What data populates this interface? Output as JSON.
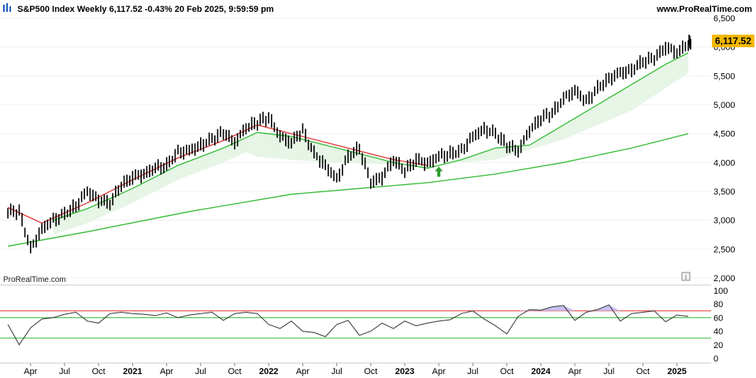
{
  "header": {
    "title": "S&P500 Index Weekly 6,117.52 -0.43% 20 Feb 2025, 9:59:59 pm",
    "source": "www.ProRealTime.com"
  },
  "watermark": "ProRealTime.com",
  "info_icon": "info-icon",
  "chart_data": [
    {
      "type": "line",
      "title": "S&P500 Index Weekly",
      "last_value_label": "6,117.52",
      "ylim": [
        2000,
        6500
      ],
      "y_ticks": [
        "6,500",
        "6,000",
        "5,500",
        "5,000",
        "4,500",
        "4,000",
        "3,500",
        "3,000",
        "2,500",
        "2,000"
      ],
      "x_ticks": [
        "Apr",
        "Jul",
        "Oct",
        "2021",
        "Apr",
        "Jul",
        "Oct",
        "2022",
        "Apr",
        "Jul",
        "Oct",
        "2023",
        "Apr",
        "Jul",
        "Oct",
        "2024",
        "Apr",
        "Jul",
        "Oct",
        "2025"
      ],
      "x_ticks_bold": [
        "2021",
        "2022",
        "2023",
        "2024",
        "2025"
      ],
      "x_range": [
        "2020-02",
        "2025-02"
      ],
      "close": [
        {
          "x": "2020-02",
          "y": 3150
        },
        {
          "x": "2020-03",
          "y": 2500
        },
        {
          "x": "2020-04",
          "y": 2850
        },
        {
          "x": "2020-05",
          "y": 3000
        },
        {
          "x": "2020-06",
          "y": 3100
        },
        {
          "x": "2020-07",
          "y": 3250
        },
        {
          "x": "2020-08",
          "y": 3500
        },
        {
          "x": "2020-09",
          "y": 3350
        },
        {
          "x": "2020-10",
          "y": 3300
        },
        {
          "x": "2020-11",
          "y": 3600
        },
        {
          "x": "2020-12",
          "y": 3750
        },
        {
          "x": "2021-01",
          "y": 3800
        },
        {
          "x": "2021-02",
          "y": 3900
        },
        {
          "x": "2021-03",
          "y": 3950
        },
        {
          "x": "2021-04",
          "y": 4180
        },
        {
          "x": "2021-05",
          "y": 4200
        },
        {
          "x": "2021-06",
          "y": 4300
        },
        {
          "x": "2021-07",
          "y": 4400
        },
        {
          "x": "2021-08",
          "y": 4520
        },
        {
          "x": "2021-09",
          "y": 4350
        },
        {
          "x": "2021-10",
          "y": 4600
        },
        {
          "x": "2021-11",
          "y": 4700
        },
        {
          "x": "2021-12",
          "y": 4780
        },
        {
          "x": "2022-01",
          "y": 4450
        },
        {
          "x": "2022-02",
          "y": 4350
        },
        {
          "x": "2022-03",
          "y": 4550
        },
        {
          "x": "2022-04",
          "y": 4150
        },
        {
          "x": "2022-05",
          "y": 3950
        },
        {
          "x": "2022-06",
          "y": 3700
        },
        {
          "x": "2022-07",
          "y": 4100
        },
        {
          "x": "2022-08",
          "y": 4250
        },
        {
          "x": "2022-09",
          "y": 3650
        },
        {
          "x": "2022-10",
          "y": 3750
        },
        {
          "x": "2022-11",
          "y": 4050
        },
        {
          "x": "2022-12",
          "y": 3850
        },
        {
          "x": "2023-01",
          "y": 4050
        },
        {
          "x": "2023-02",
          "y": 3980
        },
        {
          "x": "2023-03",
          "y": 4100
        },
        {
          "x": "2023-04",
          "y": 4150
        },
        {
          "x": "2023-05",
          "y": 4200
        },
        {
          "x": "2023-06",
          "y": 4450
        },
        {
          "x": "2023-07",
          "y": 4580
        },
        {
          "x": "2023-08",
          "y": 4500
        },
        {
          "x": "2023-09",
          "y": 4300
        },
        {
          "x": "2023-10",
          "y": 4200
        },
        {
          "x": "2023-11",
          "y": 4550
        },
        {
          "x": "2023-12",
          "y": 4770
        },
        {
          "x": "2024-01",
          "y": 4850
        },
        {
          "x": "2024-02",
          "y": 5100
        },
        {
          "x": "2024-03",
          "y": 5250
        },
        {
          "x": "2024-04",
          "y": 5050
        },
        {
          "x": "2024-05",
          "y": 5280
        },
        {
          "x": "2024-06",
          "y": 5450
        },
        {
          "x": "2024-07",
          "y": 5550
        },
        {
          "x": "2024-08",
          "y": 5600
        },
        {
          "x": "2024-09",
          "y": 5750
        },
        {
          "x": "2024-10",
          "y": 5800
        },
        {
          "x": "2024-11",
          "y": 6000
        },
        {
          "x": "2024-12",
          "y": 5900
        },
        {
          "x": "2025-01",
          "y": 6050
        },
        {
          "x": "2025-02",
          "y": 6117.52
        }
      ],
      "series": [
        {
          "name": "",
          "color": "#dd3333",
          "values": [
            {
              "x": "2020-02",
              "y": 3220
            },
            {
              "x": "2020-05",
              "y": 2950
            },
            {
              "x": "2020-09",
              "y": 3300
            },
            {
              "x": "2021-01",
              "y": 3700
            },
            {
              "x": "2021-05",
              "y": 4080
            },
            {
              "x": "2021-09",
              "y": 4380
            },
            {
              "x": "2021-12",
              "y": 4650
            },
            {
              "x": "2022-03",
              "y": 4500
            },
            {
              "x": "2022-06",
              "y": 4350
            },
            {
              "x": "2022-09",
              "y": 4200
            },
            {
              "x": "2022-12",
              "y": 4050
            },
            {
              "x": "2023-03",
              "y": 3950
            }
          ]
        },
        {
          "name": "",
          "color": "#33bb33",
          "values": [
            {
              "x": "2020-06",
              "y": 3000
            },
            {
              "x": "2020-09",
              "y": 3200
            },
            {
              "x": "2021-01",
              "y": 3550
            },
            {
              "x": "2021-05",
              "y": 3950
            },
            {
              "x": "2021-09",
              "y": 4250
            },
            {
              "x": "2021-12",
              "y": 4520
            },
            {
              "x": "2022-03",
              "y": 4450
            },
            {
              "x": "2022-06",
              "y": 4300
            },
            {
              "x": "2022-09",
              "y": 4150
            },
            {
              "x": "2022-12",
              "y": 4000
            },
            {
              "x": "2023-03",
              "y": 3900
            },
            {
              "x": "2023-06",
              "y": 4050
            },
            {
              "x": "2023-09",
              "y": 4250
            },
            {
              "x": "2023-12",
              "y": 4300
            },
            {
              "x": "2024-03",
              "y": 4650
            },
            {
              "x": "2024-06",
              "y": 5000
            },
            {
              "x": "2024-09",
              "y": 5350
            },
            {
              "x": "2024-12",
              "y": 5700
            },
            {
              "x": "2025-02",
              "y": 5900
            }
          ]
        },
        {
          "name": "",
          "color": "#33bb33",
          "values": [
            {
              "x": "2020-02",
              "y": 2550
            },
            {
              "x": "2020-09",
              "y": 2800
            },
            {
              "x": "2021-06",
              "y": 3150
            },
            {
              "x": "2022-03",
              "y": 3450
            },
            {
              "x": "2022-09",
              "y": 3550
            },
            {
              "x": "2023-03",
              "y": 3650
            },
            {
              "x": "2023-09",
              "y": 3800
            },
            {
              "x": "2024-03",
              "y": 4000
            },
            {
              "x": "2024-09",
              "y": 4250
            },
            {
              "x": "2025-02",
              "y": 4500
            }
          ]
        },
        {
          "name": "",
          "color": "#33bb33",
          "values": [
            {
              "x": "2021-12",
              "y": 4100
            },
            {
              "x": "2022-06",
              "y": 4000
            },
            {
              "x": "2023-03",
              "y": 3950
            },
            {
              "x": "2023-09",
              "y": 4050
            },
            {
              "x": "2024-03",
              "y": 4400
            },
            {
              "x": "2024-09",
              "y": 4900
            },
            {
              "x": "2025-02",
              "y": 5550
            }
          ]
        }
      ],
      "markers": [
        {
          "x": "2023-04",
          "y": 3820,
          "shape": "up-arrow",
          "color": "#2e9e2e"
        }
      ],
      "colors": {
        "bars": "#000000",
        "fill": "#e6f5e6",
        "badge": "#f5b800"
      }
    },
    {
      "type": "line",
      "ylim": [
        0,
        100
      ],
      "y_ticks": [
        "100",
        "80",
        "60",
        "40",
        "20",
        "0"
      ],
      "levels": [
        {
          "y": 70,
          "color": "#dd3333"
        },
        {
          "y": 60,
          "color": "#33bb33"
        },
        {
          "y": 30,
          "color": "#33bb33"
        }
      ],
      "series": [
        {
          "name": "",
          "color": "#333333",
          "values": [
            {
              "x": "2020-02",
              "y": 50
            },
            {
              "x": "2020-03",
              "y": 20
            },
            {
              "x": "2020-04",
              "y": 45
            },
            {
              "x": "2020-05",
              "y": 58
            },
            {
              "x": "2020-06",
              "y": 60
            },
            {
              "x": "2020-07",
              "y": 65
            },
            {
              "x": "2020-08",
              "y": 68
            },
            {
              "x": "2020-09",
              "y": 55
            },
            {
              "x": "2020-10",
              "y": 52
            },
            {
              "x": "2020-11",
              "y": 66
            },
            {
              "x": "2020-12",
              "y": 68
            },
            {
              "x": "2021-01",
              "y": 66
            },
            {
              "x": "2021-02",
              "y": 65
            },
            {
              "x": "2021-03",
              "y": 63
            },
            {
              "x": "2021-04",
              "y": 67
            },
            {
              "x": "2021-05",
              "y": 60
            },
            {
              "x": "2021-06",
              "y": 64
            },
            {
              "x": "2021-07",
              "y": 66
            },
            {
              "x": "2021-08",
              "y": 68
            },
            {
              "x": "2021-09",
              "y": 56
            },
            {
              "x": "2021-10",
              "y": 66
            },
            {
              "x": "2021-11",
              "y": 68
            },
            {
              "x": "2021-12",
              "y": 66
            },
            {
              "x": "2022-01",
              "y": 50
            },
            {
              "x": "2022-02",
              "y": 44
            },
            {
              "x": "2022-03",
              "y": 55
            },
            {
              "x": "2022-04",
              "y": 40
            },
            {
              "x": "2022-05",
              "y": 38
            },
            {
              "x": "2022-06",
              "y": 32
            },
            {
              "x": "2022-07",
              "y": 50
            },
            {
              "x": "2022-08",
              "y": 56
            },
            {
              "x": "2022-09",
              "y": 34
            },
            {
              "x": "2022-10",
              "y": 40
            },
            {
              "x": "2022-11",
              "y": 52
            },
            {
              "x": "2022-12",
              "y": 44
            },
            {
              "x": "2023-01",
              "y": 55
            },
            {
              "x": "2023-02",
              "y": 48
            },
            {
              "x": "2023-03",
              "y": 52
            },
            {
              "x": "2023-04",
              "y": 55
            },
            {
              "x": "2023-05",
              "y": 57
            },
            {
              "x": "2023-06",
              "y": 66
            },
            {
              "x": "2023-07",
              "y": 70
            },
            {
              "x": "2023-08",
              "y": 58
            },
            {
              "x": "2023-09",
              "y": 48
            },
            {
              "x": "2023-10",
              "y": 36
            },
            {
              "x": "2023-11",
              "y": 62
            },
            {
              "x": "2023-12",
              "y": 72
            },
            {
              "x": "2024-01",
              "y": 71
            },
            {
              "x": "2024-02",
              "y": 76
            },
            {
              "x": "2024-03",
              "y": 78
            },
            {
              "x": "2024-04",
              "y": 56
            },
            {
              "x": "2024-05",
              "y": 68
            },
            {
              "x": "2024-06",
              "y": 72
            },
            {
              "x": "2024-07",
              "y": 79
            },
            {
              "x": "2024-08",
              "y": 55
            },
            {
              "x": "2024-09",
              "y": 66
            },
            {
              "x": "2024-10",
              "y": 68
            },
            {
              "x": "2024-11",
              "y": 70
            },
            {
              "x": "2024-12",
              "y": 54
            },
            {
              "x": "2025-01",
              "y": 64
            },
            {
              "x": "2025-02",
              "y": 62
            }
          ]
        }
      ]
    }
  ]
}
